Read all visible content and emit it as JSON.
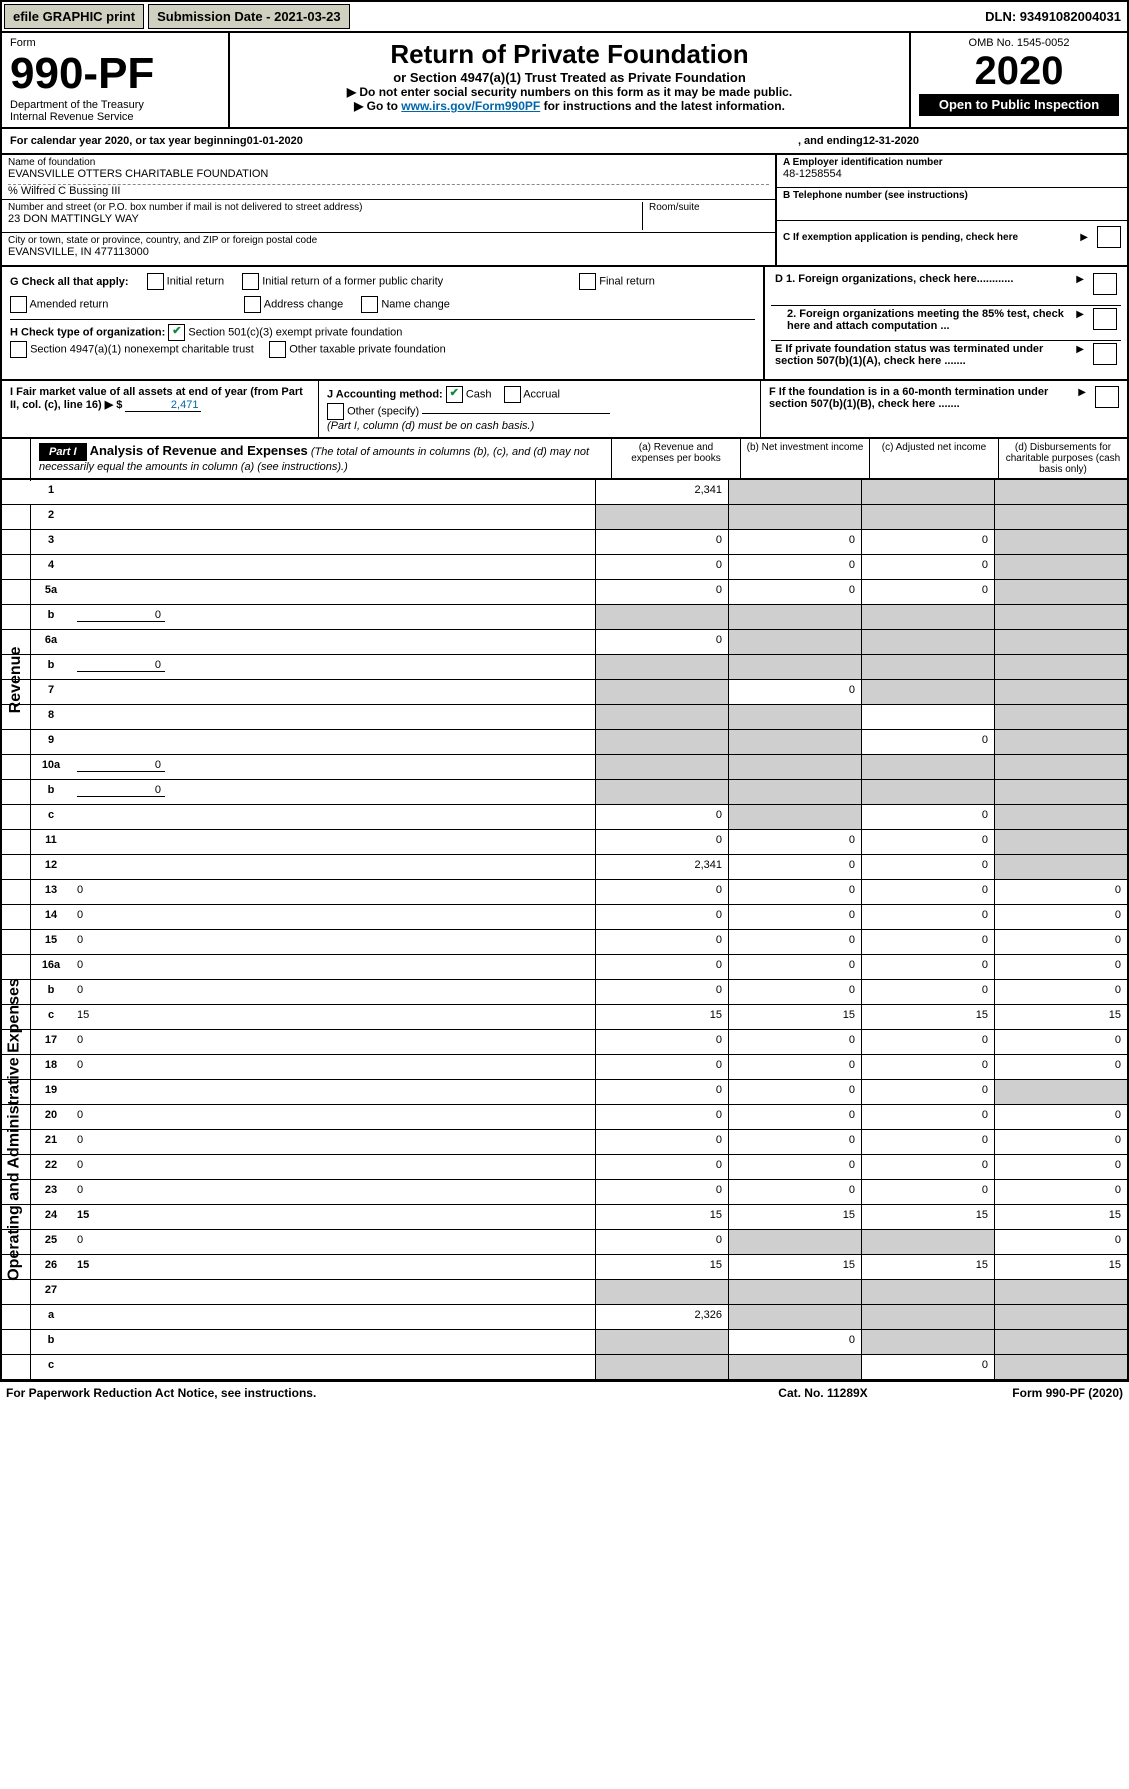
{
  "topbar": {
    "efile": "efile GRAPHIC print",
    "submission": "Submission Date - 2021-03-23",
    "dln": "DLN: 93491082004031"
  },
  "header": {
    "form_label": "Form",
    "form_no": "990-PF",
    "dept": "Department of the Treasury",
    "irs": "Internal Revenue Service",
    "title": "Return of Private Foundation",
    "subtitle": "or Section 4947(a)(1) Trust Treated as Private Foundation",
    "instr1": "▶ Do not enter social security numbers on this form as it may be made public.",
    "instr2_pre": "▶ Go to ",
    "instr2_link": "www.irs.gov/Form990PF",
    "instr2_post": " for instructions and the latest information.",
    "omb": "OMB No. 1545-0052",
    "year": "2020",
    "inspection": "Open to Public Inspection"
  },
  "cal": {
    "label_pre": "For calendar year 2020, or tax year beginning ",
    "begin": "01-01-2020",
    "label_mid": " , and ending ",
    "end": "12-31-2020"
  },
  "entity": {
    "name_label": "Name of foundation",
    "name": "EVANSVILLE OTTERS CHARITABLE FOUNDATION",
    "care_of": "% Wilfred C Bussing III",
    "addr_label": "Number and street (or P.O. box number if mail is not delivered to street address)",
    "addr": "23 DON MATTINGLY WAY",
    "room_label": "Room/suite",
    "city_label": "City or town, state or province, country, and ZIP or foreign postal code",
    "city": "EVANSVILLE, IN  477113000",
    "a_label": "A Employer identification number",
    "a_val": "48-1258554",
    "b_label": "B Telephone number (see instructions)",
    "c_label": "C If exemption application is pending, check here",
    "d1": "D 1. Foreign organizations, check here............",
    "d2": "2. Foreign organizations meeting the 85% test, check here and attach computation ...",
    "e_label": "E  If private foundation status was terminated under section 507(b)(1)(A), check here .......",
    "f_label": "F  If the foundation is in a 60-month termination under section 507(b)(1)(B), check here ......."
  },
  "checks": {
    "g_label": "G Check all that apply:",
    "g_opts": [
      "Initial return",
      "Initial return of a former public charity",
      "Final return",
      "Amended return",
      "Address change",
      "Name change"
    ],
    "h_label": "H Check type of organization:",
    "h1": "Section 501(c)(3) exempt private foundation",
    "h2": "Section 4947(a)(1) nonexempt charitable trust",
    "h3": "Other taxable private foundation",
    "i_label": "I Fair market value of all assets at end of year (from Part II, col. (c), line 16) ▶ $",
    "i_val": "2,471",
    "j_label": "J Accounting method:",
    "j_cash": "Cash",
    "j_accrual": "Accrual",
    "j_other": "Other (specify)",
    "j_note": "(Part I, column (d) must be on cash basis.)"
  },
  "part1": {
    "tag": "Part I",
    "title": "Analysis of Revenue and Expenses",
    "note": "(The total of amounts in columns (b), (c), and (d) may not necessarily equal the amounts in column (a) (see instructions).)",
    "cols": {
      "a": "(a)   Revenue and expenses per books",
      "b": "(b)  Net investment income",
      "c": "(c)  Adjusted net income",
      "d": "(d)  Disbursements for charitable purposes (cash basis only)"
    }
  },
  "sides": {
    "revenue": "Revenue",
    "expenses": "Operating and Administrative Expenses"
  },
  "rows": [
    {
      "n": "1",
      "d": "",
      "a": "2,341",
      "b": "",
      "c": "",
      "sb": true,
      "sc": true,
      "sd": true
    },
    {
      "n": "2",
      "d": "",
      "a": "",
      "b": "",
      "c": "",
      "sa": true,
      "sb": true,
      "sc": true,
      "sd": true
    },
    {
      "n": "3",
      "d": "",
      "a": "0",
      "b": "0",
      "c": "0",
      "sd": true
    },
    {
      "n": "4",
      "d": "",
      "a": "0",
      "b": "0",
      "c": "0",
      "sd": true
    },
    {
      "n": "5a",
      "d": "",
      "a": "0",
      "b": "0",
      "c": "0",
      "sd": true
    },
    {
      "n": "b",
      "d": "",
      "inline": "0",
      "a": "",
      "b": "",
      "c": "",
      "sa": true,
      "sb": true,
      "sc": true,
      "sd": true
    },
    {
      "n": "6a",
      "d": "",
      "a": "0",
      "b": "",
      "c": "",
      "sb": true,
      "sc": true,
      "sd": true
    },
    {
      "n": "b",
      "d": "",
      "inline": "0",
      "a": "",
      "b": "",
      "c": "",
      "sa": true,
      "sb": true,
      "sc": true,
      "sd": true
    },
    {
      "n": "7",
      "d": "",
      "a": "",
      "b": "0",
      "c": "",
      "sa": true,
      "sc": true,
      "sd": true
    },
    {
      "n": "8",
      "d": "",
      "a": "",
      "b": "",
      "c": "",
      "sa": true,
      "sb": true,
      "sd": true
    },
    {
      "n": "9",
      "d": "",
      "a": "",
      "b": "",
      "c": "0",
      "sa": true,
      "sb": true,
      "sd": true
    },
    {
      "n": "10a",
      "d": "",
      "inline": "0",
      "a": "",
      "b": "",
      "c": "",
      "sa": true,
      "sb": true,
      "sc": true,
      "sd": true
    },
    {
      "n": "b",
      "d": "",
      "inline": "0",
      "a": "",
      "b": "",
      "c": "",
      "sa": true,
      "sb": true,
      "sc": true,
      "sd": true
    },
    {
      "n": "c",
      "d": "",
      "a": "0",
      "b": "",
      "c": "0",
      "sb": true,
      "sd": true
    },
    {
      "n": "11",
      "d": "",
      "a": "0",
      "b": "0",
      "c": "0",
      "sd": true
    },
    {
      "n": "12",
      "d": "",
      "bold": true,
      "a": "2,341",
      "b": "0",
      "c": "0",
      "sd": true
    },
    {
      "n": "13",
      "d": "0",
      "a": "0",
      "b": "0",
      "c": "0"
    },
    {
      "n": "14",
      "d": "0",
      "a": "0",
      "b": "0",
      "c": "0"
    },
    {
      "n": "15",
      "d": "0",
      "a": "0",
      "b": "0",
      "c": "0"
    },
    {
      "n": "16a",
      "d": "0",
      "a": "0",
      "b": "0",
      "c": "0"
    },
    {
      "n": "b",
      "d": "0",
      "a": "0",
      "b": "0",
      "c": "0"
    },
    {
      "n": "c",
      "d": "15",
      "a": "15",
      "b": "15",
      "c": "15"
    },
    {
      "n": "17",
      "d": "0",
      "a": "0",
      "b": "0",
      "c": "0"
    },
    {
      "n": "18",
      "d": "0",
      "a": "0",
      "b": "0",
      "c": "0"
    },
    {
      "n": "19",
      "d": "",
      "a": "0",
      "b": "0",
      "c": "0",
      "sd": true
    },
    {
      "n": "20",
      "d": "0",
      "a": "0",
      "b": "0",
      "c": "0"
    },
    {
      "n": "21",
      "d": "0",
      "a": "0",
      "b": "0",
      "c": "0"
    },
    {
      "n": "22",
      "d": "0",
      "a": "0",
      "b": "0",
      "c": "0"
    },
    {
      "n": "23",
      "d": "0",
      "a": "0",
      "b": "0",
      "c": "0"
    },
    {
      "n": "24",
      "d": "15",
      "bold": true,
      "a": "15",
      "b": "15",
      "c": "15"
    },
    {
      "n": "25",
      "d": "0",
      "a": "0",
      "b": "",
      "c": "",
      "sb": true,
      "sc": true
    },
    {
      "n": "26",
      "d": "15",
      "bold": true,
      "a": "15",
      "b": "15",
      "c": "15"
    },
    {
      "n": "27",
      "d": "",
      "a": "",
      "b": "",
      "c": "",
      "sa": true,
      "sb": true,
      "sc": true,
      "sd": true
    },
    {
      "n": "a",
      "d": "",
      "bold": true,
      "a": "2,326",
      "b": "",
      "c": "",
      "sb": true,
      "sc": true,
      "sd": true
    },
    {
      "n": "b",
      "d": "",
      "bold": true,
      "a": "",
      "b": "0",
      "c": "",
      "sa": true,
      "sc": true,
      "sd": true
    },
    {
      "n": "c",
      "d": "",
      "bold": true,
      "a": "",
      "b": "",
      "c": "0",
      "sa": true,
      "sb": true,
      "sd": true
    }
  ],
  "footer": {
    "left": "For Paperwork Reduction Act Notice, see instructions.",
    "mid": "Cat. No. 11289X",
    "right": "Form 990-PF (2020)"
  },
  "colors": {
    "check_green": "#0a8a3a",
    "link_blue": "#0066aa",
    "shade": "#cfcfcf",
    "btn_bg": "#d0d0c0"
  }
}
